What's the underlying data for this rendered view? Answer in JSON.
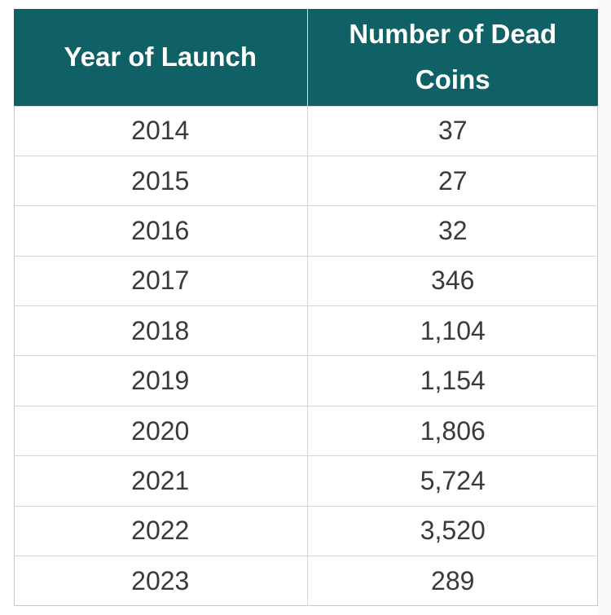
{
  "chart_data": {
    "type": "table",
    "columns": [
      "Year of Launch",
      "Number of  Dead Coins"
    ],
    "rows": [
      [
        "2014",
        "37"
      ],
      [
        "2015",
        "27"
      ],
      [
        "2016",
        "32"
      ],
      [
        "2017",
        "346"
      ],
      [
        "2018",
        "1,104"
      ],
      [
        "2019",
        "1,154"
      ],
      [
        "2020",
        "1,806"
      ],
      [
        "2021",
        "5,724"
      ],
      [
        "2022",
        "3,520"
      ],
      [
        "2023",
        "289"
      ]
    ],
    "x": [
      2014,
      2015,
      2016,
      2017,
      2018,
      2019,
      2020,
      2021,
      2022,
      2023
    ],
    "values": [
      37,
      27,
      32,
      346,
      1104,
      1154,
      1806,
      5724,
      3520,
      289
    ]
  },
  "colors": {
    "header_background": "#0f6165",
    "header_text": "#ffffff",
    "cell_text": "#3a3a3a",
    "grid_lines": "#d6d6d6"
  }
}
